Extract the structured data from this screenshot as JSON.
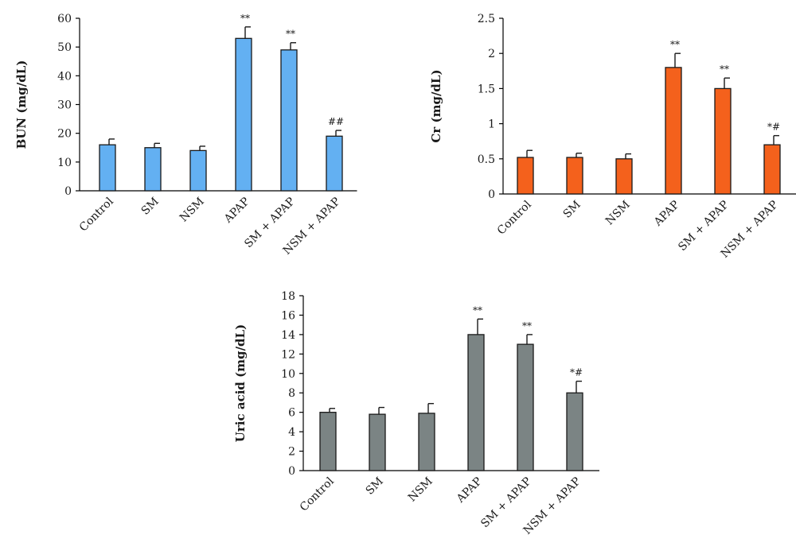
{
  "chart_data": [
    {
      "type": "bar",
      "ylabel": "BUN (mg/dL)",
      "categories": [
        "Control",
        "SM",
        "NSM",
        "APAP",
        "SM + APAP",
        "NSM + APAP"
      ],
      "values": [
        16,
        15,
        14,
        53,
        49,
        19
      ],
      "errors": [
        2,
        1.5,
        1.5,
        4,
        2.5,
        2
      ],
      "annotations": [
        "",
        "",
        "",
        "**",
        "**",
        "##"
      ],
      "ylim": [
        0,
        60
      ],
      "yticks": [
        "0",
        "10",
        "20",
        "30",
        "40",
        "50",
        "60"
      ],
      "color": "#63b0f2"
    },
    {
      "type": "bar",
      "ylabel": "Cr (mg/dL)",
      "categories": [
        "Control",
        "SM",
        "NSM",
        "APAP",
        "SM + APAP",
        "NSM + APAP"
      ],
      "values": [
        0.52,
        0.52,
        0.5,
        1.8,
        1.5,
        0.7
      ],
      "errors": [
        0.1,
        0.06,
        0.07,
        0.2,
        0.15,
        0.13
      ],
      "annotations": [
        "",
        "",
        "",
        "**",
        "**",
        "*#"
      ],
      "ylim": [
        0,
        2.5
      ],
      "yticks": [
        "0",
        "0.5",
        "1",
        "1.5",
        "2",
        "2.5"
      ],
      "color": "#f4611c"
    },
    {
      "type": "bar",
      "ylabel": "Uric acid (mg/dL)",
      "categories": [
        "Control",
        "SM",
        "NSM",
        "APAP",
        "SM + APAP",
        "NSM + APAP"
      ],
      "values": [
        6,
        5.8,
        5.9,
        14,
        13,
        8
      ],
      "errors": [
        0.4,
        0.7,
        1,
        1.6,
        1,
        1.2
      ],
      "annotations": [
        "",
        "",
        "",
        "**",
        "**",
        "*#"
      ],
      "ylim": [
        0,
        18
      ],
      "yticks": [
        "0",
        "2",
        "4",
        "6",
        "8",
        "10",
        "12",
        "14",
        "16",
        "18"
      ],
      "color": "#7b8484"
    }
  ]
}
